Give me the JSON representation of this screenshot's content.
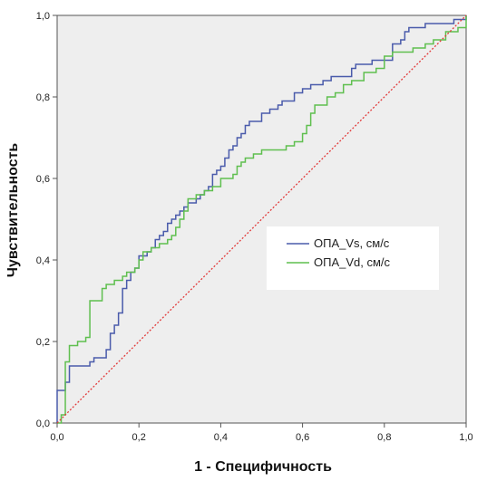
{
  "chart_data": {
    "type": "line",
    "title": "",
    "xlabel": "1 - Специфичность",
    "ylabel": "Чувствительность",
    "xlim": [
      0,
      1
    ],
    "ylim": [
      0,
      1
    ],
    "x_ticks": [
      "0,0",
      "0,2",
      "0,4",
      "0,6",
      "0,8",
      "1,0"
    ],
    "y_ticks": [
      "0,0",
      "0,2",
      "0,4",
      "0,6",
      "0,8",
      "1,0"
    ],
    "grid": false,
    "legend_position": "right-middle",
    "plot_background": "#eeeeee",
    "series": [
      {
        "name": "ОПА_Vs, см/с",
        "color": "#4a5bab",
        "x": [
          0,
          0,
          0.02,
          0.03,
          0.03,
          0.06,
          0.08,
          0.09,
          0.11,
          0.12,
          0.13,
          0.14,
          0.15,
          0.16,
          0.16,
          0.17,
          0.18,
          0.19,
          0.2,
          0.22,
          0.23,
          0.24,
          0.25,
          0.26,
          0.27,
          0.28,
          0.29,
          0.3,
          0.31,
          0.32,
          0.33,
          0.34,
          0.35,
          0.36,
          0.37,
          0.38,
          0.39,
          0.4,
          0.41,
          0.42,
          0.43,
          0.44,
          0.45,
          0.46,
          0.47,
          0.48,
          0.49,
          0.5,
          0.52,
          0.54,
          0.55,
          0.57,
          0.58,
          0.6,
          0.62,
          0.64,
          0.65,
          0.67,
          0.7,
          0.72,
          0.73,
          0.75,
          0.77,
          0.8,
          0.82,
          0.84,
          0.85,
          0.86,
          0.88,
          0.89,
          0.9,
          0.92,
          0.95,
          0.97,
          1.0
        ],
        "y": [
          0,
          0.08,
          0.1,
          0.13,
          0.14,
          0.14,
          0.15,
          0.16,
          0.16,
          0.18,
          0.22,
          0.24,
          0.27,
          0.3,
          0.33,
          0.35,
          0.37,
          0.38,
          0.41,
          0.42,
          0.43,
          0.45,
          0.46,
          0.47,
          0.49,
          0.5,
          0.51,
          0.52,
          0.53,
          0.54,
          0.54,
          0.55,
          0.56,
          0.57,
          0.58,
          0.61,
          0.62,
          0.63,
          0.65,
          0.67,
          0.68,
          0.7,
          0.71,
          0.73,
          0.74,
          0.74,
          0.74,
          0.76,
          0.77,
          0.78,
          0.79,
          0.79,
          0.81,
          0.82,
          0.83,
          0.83,
          0.84,
          0.85,
          0.85,
          0.87,
          0.88,
          0.88,
          0.89,
          0.89,
          0.93,
          0.94,
          0.96,
          0.97,
          0.97,
          0.97,
          0.98,
          0.98,
          0.98,
          0.99,
          1.0
        ]
      },
      {
        "name": "ОПА_Vd, см/с",
        "color": "#5fbf4f",
        "x": [
          0,
          0.01,
          0.02,
          0.02,
          0.03,
          0.03,
          0.05,
          0.07,
          0.08,
          0.1,
          0.11,
          0.12,
          0.14,
          0.16,
          0.17,
          0.19,
          0.2,
          0.21,
          0.23,
          0.25,
          0.27,
          0.28,
          0.29,
          0.3,
          0.31,
          0.32,
          0.34,
          0.36,
          0.38,
          0.4,
          0.42,
          0.43,
          0.44,
          0.45,
          0.46,
          0.48,
          0.5,
          0.52,
          0.54,
          0.56,
          0.58,
          0.6,
          0.61,
          0.62,
          0.63,
          0.65,
          0.66,
          0.68,
          0.7,
          0.72,
          0.75,
          0.78,
          0.8,
          0.82,
          0.85,
          0.87,
          0.9,
          0.92,
          0.95,
          0.98,
          1.0
        ],
        "y": [
          0,
          0.02,
          0.04,
          0.15,
          0.16,
          0.19,
          0.2,
          0.21,
          0.3,
          0.3,
          0.33,
          0.34,
          0.35,
          0.36,
          0.37,
          0.38,
          0.4,
          0.42,
          0.43,
          0.44,
          0.45,
          0.46,
          0.48,
          0.5,
          0.52,
          0.55,
          0.56,
          0.57,
          0.58,
          0.6,
          0.6,
          0.61,
          0.63,
          0.64,
          0.65,
          0.66,
          0.67,
          0.67,
          0.67,
          0.68,
          0.69,
          0.71,
          0.73,
          0.76,
          0.78,
          0.78,
          0.8,
          0.81,
          0.83,
          0.84,
          0.86,
          0.87,
          0.9,
          0.91,
          0.91,
          0.92,
          0.93,
          0.94,
          0.96,
          0.97,
          1.0
        ]
      },
      {
        "name": "",
        "color": "#e23b3b",
        "style": "dotted",
        "x": [
          0,
          1
        ],
        "y": [
          0,
          1
        ]
      }
    ]
  }
}
